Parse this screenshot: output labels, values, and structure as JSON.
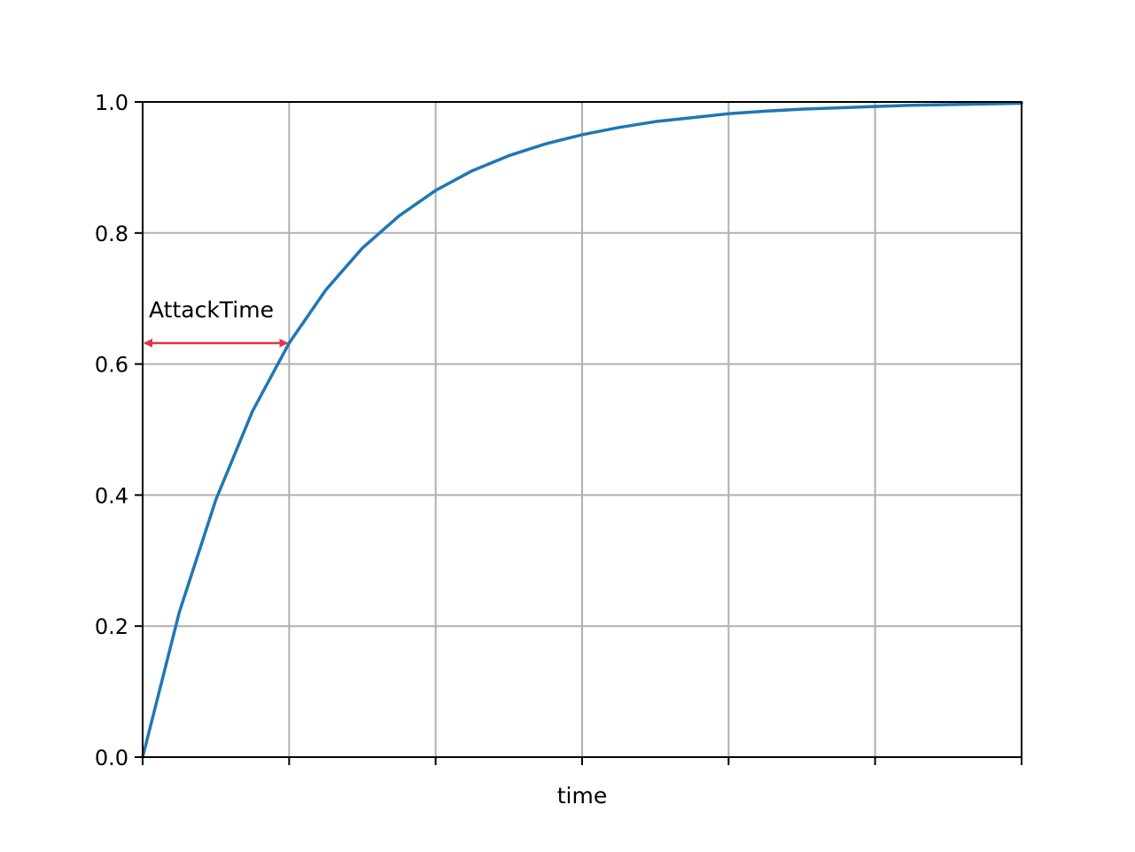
{
  "chart_data": {
    "type": "line",
    "title": "",
    "xlabel": "time",
    "ylabel": "",
    "xlim": [
      0,
      6
    ],
    "ylim": [
      0,
      1
    ],
    "xticks": [
      0,
      1,
      2,
      3,
      4,
      5,
      6
    ],
    "xtick_labels": [
      "",
      "",
      "",
      "",
      "",
      "",
      ""
    ],
    "yticks": [
      0.0,
      0.2,
      0.4,
      0.6,
      0.8,
      1.0
    ],
    "ytick_labels": [
      "0.0",
      "0.2",
      "0.4",
      "0.6",
      "0.8",
      "1.0"
    ],
    "grid": true,
    "series": [
      {
        "color": "#1f77b4",
        "x": [
          0,
          0.25,
          0.5,
          0.75,
          1,
          1.25,
          1.5,
          1.75,
          2,
          2.25,
          2.5,
          2.75,
          3,
          3.25,
          3.5,
          3.75,
          4,
          4.25,
          4.5,
          4.75,
          5,
          5.25,
          5.5,
          5.75,
          6
        ],
        "y": [
          0,
          0.221,
          0.393,
          0.528,
          0.632,
          0.713,
          0.777,
          0.826,
          0.865,
          0.895,
          0.918,
          0.936,
          0.95,
          0.961,
          0.97,
          0.976,
          0.982,
          0.986,
          0.989,
          0.991,
          0.993,
          0.995,
          0.996,
          0.997,
          0.998
        ]
      }
    ],
    "annotations": [
      {
        "text": "AttackTime",
        "arrow": {
          "x_start": 0,
          "x_end": 1,
          "y": 0.632,
          "style": "double-headed",
          "color": "#dc3545"
        }
      }
    ]
  }
}
